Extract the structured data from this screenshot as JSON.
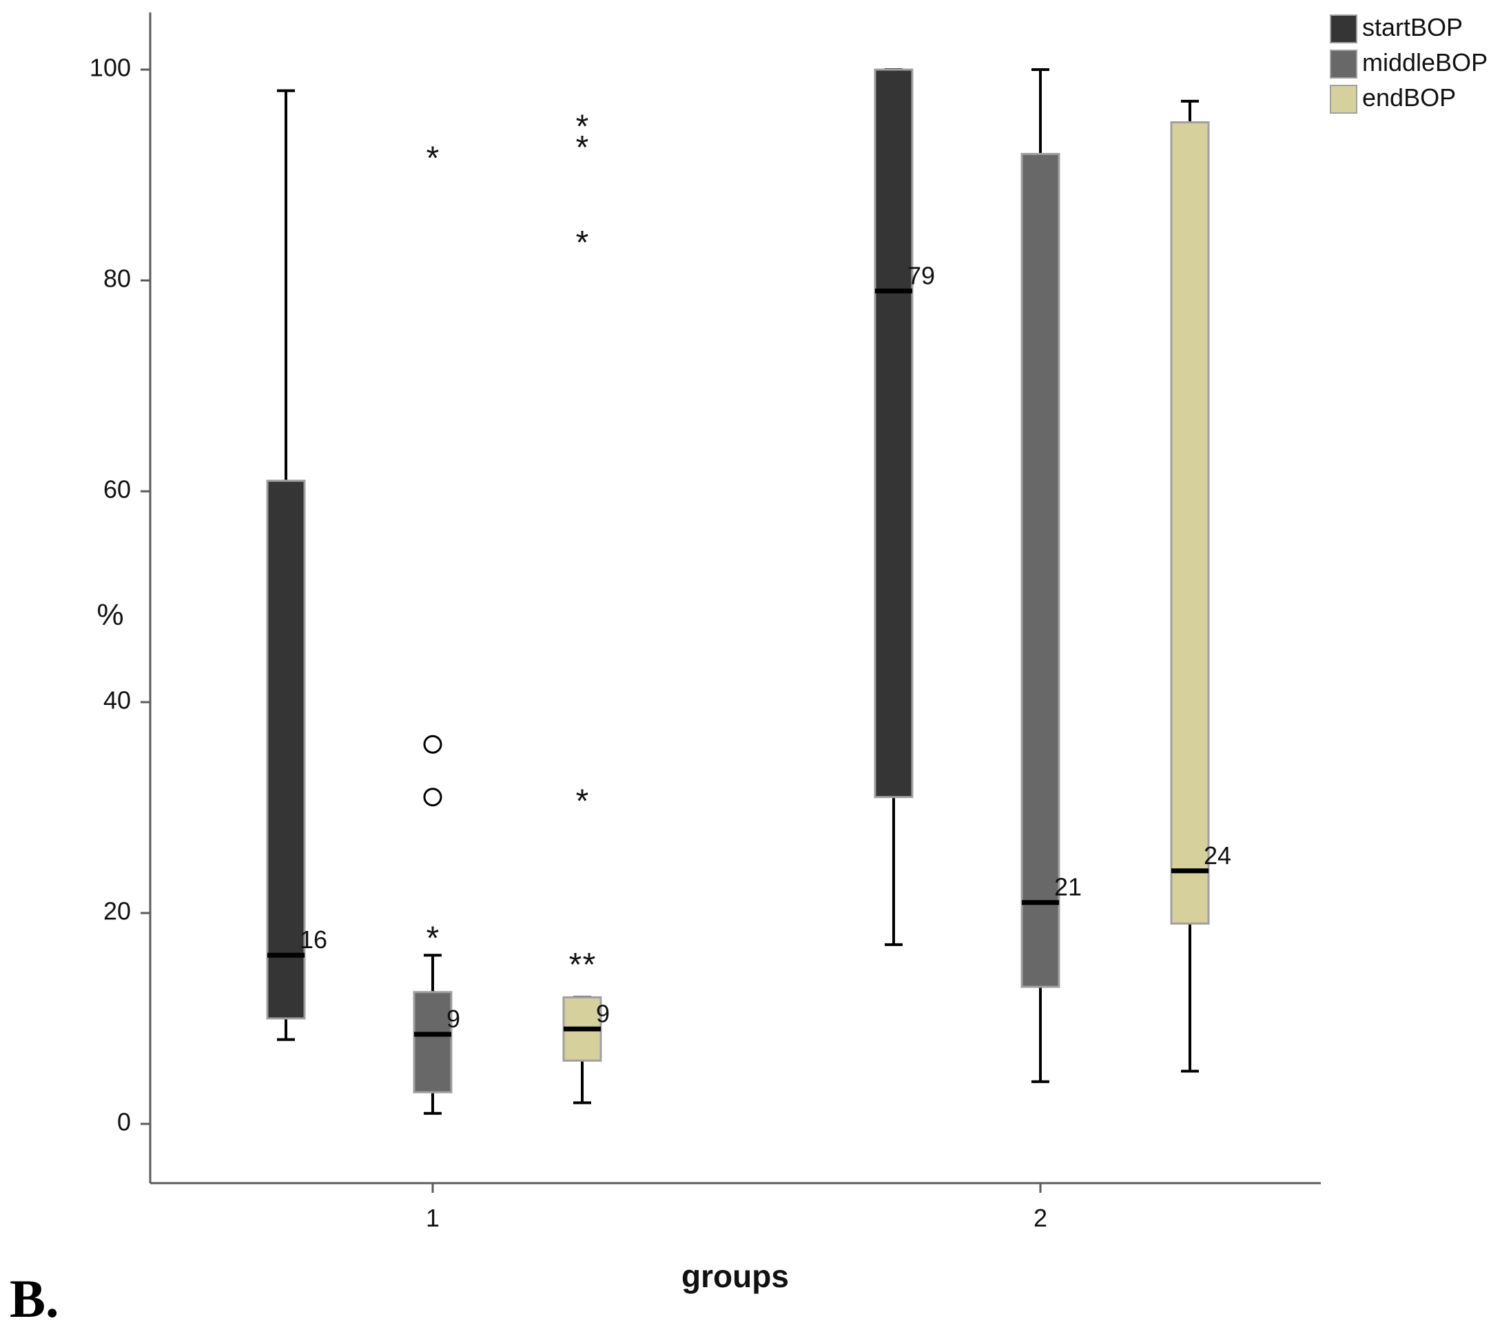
{
  "panel_label": "B.",
  "colors": {
    "startBOP": "#353535",
    "middleBOP": "#686868",
    "endBOP": "#d6d09c",
    "axis": "#5a5a5a",
    "box_border": "#a0a0a0"
  },
  "chart_data": {
    "type": "box",
    "xlabel": "groups",
    "ylabel": "%",
    "ylim": [
      -11,
      105
    ],
    "yticks": [
      "0",
      "20",
      "40",
      "60",
      "80",
      "100"
    ],
    "ytick_values": [
      0,
      20,
      40,
      60,
      80,
      100
    ],
    "categories": [
      "1",
      "2"
    ],
    "legend": {
      "position": "top-right",
      "entries": [
        "startBOP",
        "middleBOP",
        "endBOP"
      ]
    },
    "series": [
      {
        "name": "startBOP",
        "color": "#353535",
        "boxes": [
          {
            "group": "1",
            "whisker_low": 8,
            "q1": 10,
            "median": 16,
            "q3": 61,
            "whisker_high": 98,
            "median_label": "16",
            "outliers": [],
            "extremes": []
          },
          {
            "group": "2",
            "whisker_low": 17,
            "q1": 31,
            "median": 79,
            "q3": 100,
            "whisker_high": 100,
            "median_label": "79",
            "outliers": [],
            "extremes": []
          }
        ]
      },
      {
        "name": "middleBOP",
        "color": "#686868",
        "boxes": [
          {
            "group": "1",
            "whisker_low": 1,
            "q1": 3,
            "median": 8.5,
            "q3": 12.5,
            "whisker_high": 16,
            "median_label": "9",
            "outliers": [
              31,
              36
            ],
            "extremes": [
              18,
              92
            ]
          },
          {
            "group": "2",
            "whisker_low": 4,
            "q1": 13,
            "median": 21,
            "q3": 92,
            "whisker_high": 100,
            "median_label": "21",
            "outliers": [],
            "extremes": []
          }
        ]
      },
      {
        "name": "endBOP",
        "color": "#d6d09c",
        "boxes": [
          {
            "group": "1",
            "whisker_low": 2,
            "q1": 6,
            "median": 9,
            "q3": 12,
            "whisker_high": 12,
            "median_label": "9",
            "outliers": [],
            "extremes": [
              15.5,
              15.5,
              31,
              84,
              93,
              95
            ]
          },
          {
            "group": "2",
            "whisker_low": 5,
            "q1": 19,
            "median": 24,
            "q3": 95,
            "whisker_high": 97,
            "median_label": "24",
            "outliers": [],
            "extremes": []
          }
        ]
      }
    ]
  }
}
